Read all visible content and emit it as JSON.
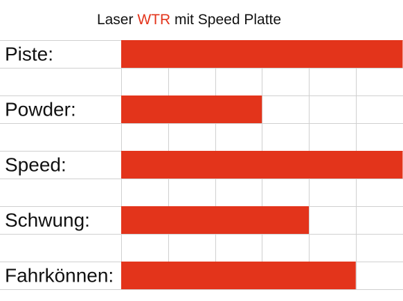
{
  "chart_data": {
    "type": "hbar",
    "title": [
      "Laser ",
      "WTR",
      " mit Speed Platte"
    ],
    "title_colors": [
      "#111111",
      "#e3341b",
      "#111111"
    ],
    "categories": [
      "Piste:",
      "Powder:",
      "Speed:",
      "Schwung:",
      "Fahrkönnen:"
    ],
    "values": [
      6,
      3,
      6,
      4,
      5
    ],
    "color": "#e3341b",
    "xlim": [
      0,
      6
    ],
    "xticks": [
      0,
      1,
      2,
      3,
      4,
      5,
      6
    ],
    "grid": true
  }
}
